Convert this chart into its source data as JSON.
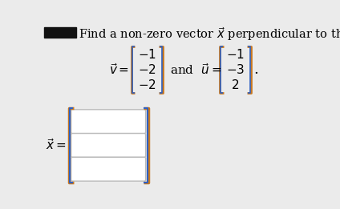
{
  "title_text": "Find a non-zero vector $\\vec{x}$ perpendicular to the vectors",
  "v_label": "$\\vec{v}=$",
  "v_values": [
    "$-1$",
    "$-2$",
    "$-2$"
  ],
  "u_label": "and  $\\vec{u}=$",
  "u_values": [
    "$-1$",
    "$-3$",
    "$2$"
  ],
  "x_label": "$\\vec{x}=$",
  "bg_color": "#ebebeb",
  "box_color": "#ffffff",
  "box_edge_color": "#bbbbbb",
  "bracket_color_outer": "#c87820",
  "bracket_color_inner": "#3060c0",
  "text_color": "#000000",
  "black_box_color": "#111111",
  "period": ".",
  "font_size_title": 10.5,
  "font_size_math": 11
}
